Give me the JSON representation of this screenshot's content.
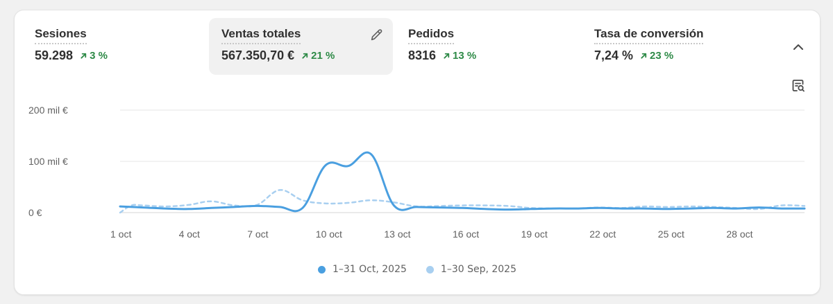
{
  "metrics": [
    {
      "label": "Sesiones",
      "value": "59.298",
      "delta": "3 %"
    },
    {
      "label": "Ventas totales",
      "value": "567.350,70 €",
      "delta": "21 %"
    },
    {
      "label": "Pedidos",
      "value": "8316",
      "delta": "13 %"
    },
    {
      "label": "Tasa de conversión",
      "value": "7,24 %",
      "delta": "23 %"
    }
  ],
  "colors": {
    "current": "#4a9fe0",
    "previous": "#a8cff0",
    "delta_up": "#2e8a47",
    "grid": "#e6e6e6"
  },
  "chart_data": {
    "type": "line",
    "title": "Ventas totales",
    "ylim": [
      0,
      200000
    ],
    "y_ticks": [
      {
        "value": 0,
        "label": "0 €"
      },
      {
        "value": 100000,
        "label": "100 mil €"
      },
      {
        "value": 200000,
        "label": "200 mil €"
      }
    ],
    "x_ticks": [
      {
        "day": 1,
        "label": "1 oct"
      },
      {
        "day": 4,
        "label": "4 oct"
      },
      {
        "day": 7,
        "label": "7 oct"
      },
      {
        "day": 10,
        "label": "10 oct"
      },
      {
        "day": 13,
        "label": "13 oct"
      },
      {
        "day": 16,
        "label": "16 oct"
      },
      {
        "day": 19,
        "label": "19 oct"
      },
      {
        "day": 22,
        "label": "22 oct"
      },
      {
        "day": 25,
        "label": "25 oct"
      },
      {
        "day": 28,
        "label": "28 oct"
      }
    ],
    "x_range": [
      1,
      31
    ],
    "series": [
      {
        "name": "1–31 Oct, 2025",
        "style": "solid",
        "x": [
          1,
          2,
          3,
          4,
          5,
          6,
          7,
          8,
          9,
          10,
          11,
          12,
          13,
          14,
          15,
          16,
          17,
          18,
          19,
          20,
          21,
          22,
          23,
          24,
          25,
          26,
          27,
          28,
          29,
          30,
          31
        ],
        "values": [
          12000,
          10000,
          8000,
          7000,
          9000,
          11000,
          13000,
          11000,
          9000,
          92000,
          91000,
          114000,
          14000,
          11000,
          10000,
          9000,
          7000,
          6000,
          7000,
          8000,
          8000,
          9000,
          8000,
          8000,
          7000,
          8000,
          9000,
          8000,
          10000,
          8000,
          8000
        ]
      },
      {
        "name": "1–30 Sep, 2025",
        "style": "dashed",
        "x": [
          1,
          1.5,
          2,
          3,
          4,
          5,
          6,
          7,
          8,
          9,
          10,
          11,
          12,
          13,
          14,
          15,
          16,
          17,
          18,
          19,
          20,
          21,
          22,
          23,
          24,
          25,
          26,
          27,
          28,
          29,
          30,
          31
        ],
        "values": [
          0,
          14000,
          14000,
          12000,
          15000,
          22000,
          14000,
          15000,
          44000,
          24000,
          18000,
          19000,
          24000,
          20000,
          12000,
          13000,
          14000,
          14000,
          13000,
          9000,
          8000,
          8000,
          10000,
          9000,
          12000,
          11000,
          12000,
          11000,
          9000,
          7000,
          14000,
          13000
        ]
      }
    ]
  }
}
